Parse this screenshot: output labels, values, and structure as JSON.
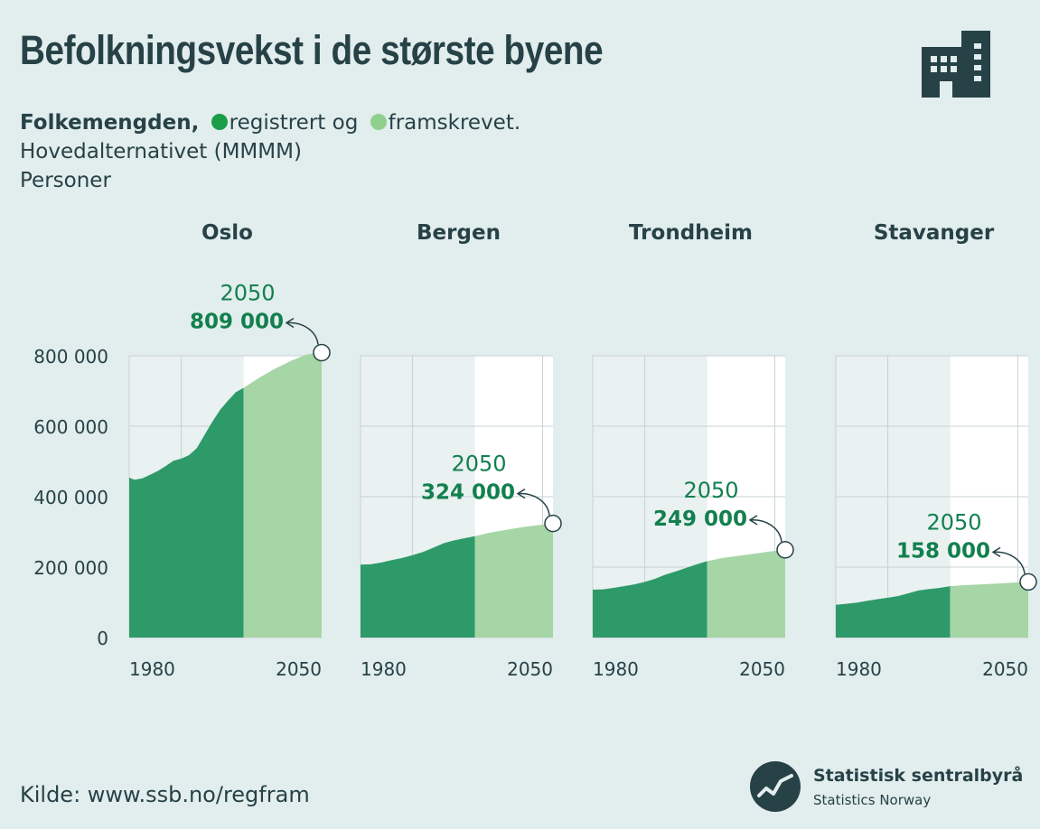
{
  "title": "Befolkningsvekst i de største byene",
  "subtitle": {
    "bold": "Folkemengden,",
    "registered": "registrert og",
    "projected": "framskrevet.",
    "line2": "Hovedalternativet (MMMM)",
    "line3": "Personer"
  },
  "source": "Kilde: www.ssb.no/regfram",
  "logo": {
    "name": "Statistisk sentralbyrå",
    "name_en": "Statistics Norway"
  },
  "colors": {
    "registered": "#2e9a6a",
    "projected": "#a6d5a6",
    "text": "#274247",
    "accent": "#12804e",
    "background": "#e2eded",
    "plot_background": "#ffffff"
  },
  "icons": [
    "building-icon",
    "ssb-logo-icon"
  ],
  "chart_data": {
    "type": "area",
    "ylim": [
      0,
      800000
    ],
    "yticks": [
      0,
      200000,
      400000,
      600000,
      800000
    ],
    "ytick_labels": [
      "0",
      "200 000",
      "400 000",
      "600 000",
      "800 000"
    ],
    "xlim": [
      1980,
      2054
    ],
    "xtick_labels": [
      "1980",
      "2050"
    ],
    "projection_start_year": 2024,
    "grid": true,
    "panels": [
      {
        "city": "Oslo",
        "label_year": "2050",
        "label_value": "809 000",
        "end_value": 809000,
        "registered": [
          [
            1980,
            454000
          ],
          [
            1982,
            448000
          ],
          [
            1985,
            452000
          ],
          [
            1988,
            462000
          ],
          [
            1991,
            473000
          ],
          [
            1994,
            487000
          ],
          [
            1997,
            502000
          ],
          [
            2000,
            508000
          ],
          [
            2003,
            518000
          ],
          [
            2006,
            538000
          ],
          [
            2009,
            576000
          ],
          [
            2012,
            613000
          ],
          [
            2015,
            647000
          ],
          [
            2018,
            673000
          ],
          [
            2021,
            697000
          ],
          [
            2024,
            709000
          ]
        ],
        "projected": [
          [
            2024,
            709000
          ],
          [
            2030,
            738000
          ],
          [
            2036,
            763000
          ],
          [
            2042,
            785000
          ],
          [
            2048,
            803000
          ],
          [
            2054,
            809000
          ]
        ]
      },
      {
        "city": "Bergen",
        "label_year": "2050",
        "label_value": "324 000",
        "end_value": 324000,
        "registered": [
          [
            1980,
            207000
          ],
          [
            1984,
            208000
          ],
          [
            1988,
            213000
          ],
          [
            1992,
            220000
          ],
          [
            1996,
            226000
          ],
          [
            2000,
            234000
          ],
          [
            2004,
            243000
          ],
          [
            2008,
            255000
          ],
          [
            2012,
            268000
          ],
          [
            2016,
            276000
          ],
          [
            2020,
            282000
          ],
          [
            2024,
            288000
          ]
        ],
        "projected": [
          [
            2024,
            288000
          ],
          [
            2030,
            298000
          ],
          [
            2036,
            306000
          ],
          [
            2042,
            313000
          ],
          [
            2048,
            319000
          ],
          [
            2054,
            324000
          ]
        ]
      },
      {
        "city": "Trondheim",
        "label_year": "2050",
        "label_value": "249 000",
        "end_value": 249000,
        "registered": [
          [
            1980,
            136000
          ],
          [
            1984,
            137000
          ],
          [
            1988,
            141000
          ],
          [
            1992,
            146000
          ],
          [
            1996,
            151000
          ],
          [
            2000,
            158000
          ],
          [
            2004,
            167000
          ],
          [
            2008,
            179000
          ],
          [
            2012,
            188000
          ],
          [
            2016,
            198000
          ],
          [
            2020,
            208000
          ],
          [
            2024,
            217000
          ]
        ],
        "projected": [
          [
            2024,
            217000
          ],
          [
            2030,
            226000
          ],
          [
            2036,
            232000
          ],
          [
            2042,
            238000
          ],
          [
            2048,
            244000
          ],
          [
            2054,
            249000
          ]
        ]
      },
      {
        "city": "Stavanger",
        "label_year": "2050",
        "label_value": "158 000",
        "end_value": 158000,
        "registered": [
          [
            1980,
            93000
          ],
          [
            1984,
            96000
          ],
          [
            1988,
            99000
          ],
          [
            1992,
            104000
          ],
          [
            1996,
            109000
          ],
          [
            2000,
            113000
          ],
          [
            2004,
            118000
          ],
          [
            2008,
            126000
          ],
          [
            2012,
            134000
          ],
          [
            2016,
            138000
          ],
          [
            2020,
            141000
          ],
          [
            2024,
            146000
          ]
        ],
        "projected": [
          [
            2024,
            146000
          ],
          [
            2030,
            149000
          ],
          [
            2036,
            151000
          ],
          [
            2042,
            153000
          ],
          [
            2048,
            156000
          ],
          [
            2054,
            158000
          ]
        ]
      }
    ]
  }
}
